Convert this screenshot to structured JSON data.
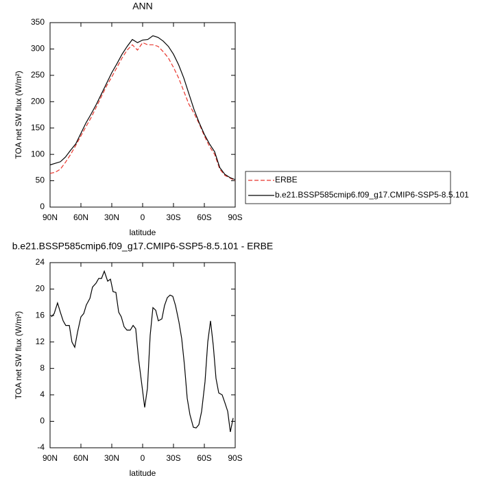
{
  "chart_data": [
    {
      "type": "line",
      "title": "ANN",
      "xlabel": "latitude",
      "ylabel": "TOA net SW flux (W/m²)",
      "x": [
        90,
        85,
        80,
        75,
        70,
        65,
        60,
        55,
        50,
        45,
        40,
        35,
        30,
        25,
        20,
        15,
        10,
        5,
        0,
        -5,
        -10,
        -15,
        -20,
        -25,
        -30,
        -35,
        -40,
        -45,
        -50,
        -55,
        -60,
        -65,
        -70,
        -75,
        -80,
        -85,
        -90
      ],
      "series": [
        {
          "name": "ERBE",
          "color": "#e8352c",
          "line_style": "dashed",
          "values": [
            64,
            66,
            72,
            85,
            100,
            117,
            135,
            153,
            170,
            190,
            210,
            230,
            247,
            265,
            283,
            298,
            308,
            298,
            312,
            308,
            308,
            305,
            295,
            283,
            265,
            245,
            220,
            195,
            178,
            158,
            135,
            115,
            100,
            72,
            60,
            55,
            50
          ]
        },
        {
          "name": "b.e21.BSSP585cmip6.f09_g17.CMIP6-SSP5-8.5.101",
          "color": "#000000",
          "line_style": "solid",
          "values": [
            80,
            83,
            86,
            95,
            108,
            120,
            140,
            160,
            177,
            195,
            215,
            235,
            255,
            272,
            290,
            305,
            318,
            312,
            317,
            318,
            325,
            322,
            315,
            305,
            290,
            270,
            245,
            215,
            185,
            160,
            138,
            120,
            105,
            75,
            62,
            56,
            52
          ]
        }
      ],
      "xlim": [
        90,
        -90
      ],
      "xticks": [
        {
          "value": 90,
          "label": "90N"
        },
        {
          "value": 60,
          "label": "60N"
        },
        {
          "value": 30,
          "label": "30N"
        },
        0,
        {
          "value": -30,
          "label": "30S"
        },
        {
          "value": -60,
          "label": "60S"
        },
        {
          "value": -90,
          "label": "90S"
        }
      ],
      "ylim": [
        0,
        350
      ],
      "yticks": [
        0,
        50,
        100,
        150,
        200,
        250,
        300,
        350
      ]
    },
    {
      "type": "line",
      "title": "b.e21.BSSP585cmip6.f09_g17.CMIP6-SSP5-8.5.101 - ERBE",
      "xlabel": "latitude",
      "ylabel": "TOA net SW flux (W/m²)",
      "x": [
        88.7,
        86,
        82.7,
        80,
        77.3,
        74.7,
        71.3,
        68.7,
        66,
        63.3,
        60,
        57.3,
        54.7,
        51.3,
        48.7,
        45.3,
        42.7,
        40,
        37.3,
        34,
        31.3,
        28.7,
        26,
        23.3,
        20.7,
        18,
        15.3,
        12,
        9.3,
        6.7,
        4,
        0.7,
        -2,
        -4.7,
        -7.3,
        -10,
        -12.7,
        -15.3,
        -18.7,
        -21.3,
        -24,
        -26.7,
        -29.3,
        -32,
        -35.3,
        -38,
        -40.7,
        -43.3,
        -46,
        -49.3,
        -52,
        -54.7,
        -57.3,
        -60.7,
        -63.3,
        -66,
        -68.7,
        -71.3,
        -74,
        -77.3,
        -80,
        -82.7,
        -85.3,
        -88
      ],
      "series": [
        {
          "color": "#000000",
          "line_style": "solid",
          "values": [
            15.8,
            16.3,
            17.9,
            16.5,
            15.2,
            14.5,
            14.5,
            12,
            11.2,
            13.5,
            15.8,
            16.3,
            17.6,
            18.6,
            20.3,
            20.9,
            21.6,
            21.6,
            22.7,
            21.2,
            21.5,
            19.6,
            19.5,
            16.5,
            15.8,
            14.3,
            13.8,
            13.8,
            14.5,
            14,
            9.5,
            5.5,
            2.1,
            5,
            13,
            17.2,
            16.8,
            15.2,
            15.5,
            17.5,
            18.7,
            19.1,
            18.9,
            17.5,
            15,
            12.5,
            8.5,
            3.5,
            1,
            -0.9,
            -1,
            -0.5,
            1.5,
            6,
            12,
            15.2,
            11.5,
            6.5,
            4.3,
            4,
            2.8,
            1.5,
            -1.6,
            0.5
          ]
        }
      ],
      "xlim": [
        90,
        -90
      ],
      "xticks": [
        {
          "value": 90,
          "label": "90N"
        },
        {
          "value": 60,
          "label": "60N"
        },
        {
          "value": 30,
          "label": "30N"
        },
        0,
        {
          "value": -30,
          "label": "30S"
        },
        {
          "value": -60,
          "label": "60S"
        },
        {
          "value": -90,
          "label": "90S"
        }
      ],
      "ylim": [
        -4,
        24
      ],
      "yticks": [
        -4,
        0,
        4,
        8,
        12,
        16,
        20,
        24
      ]
    }
  ]
}
